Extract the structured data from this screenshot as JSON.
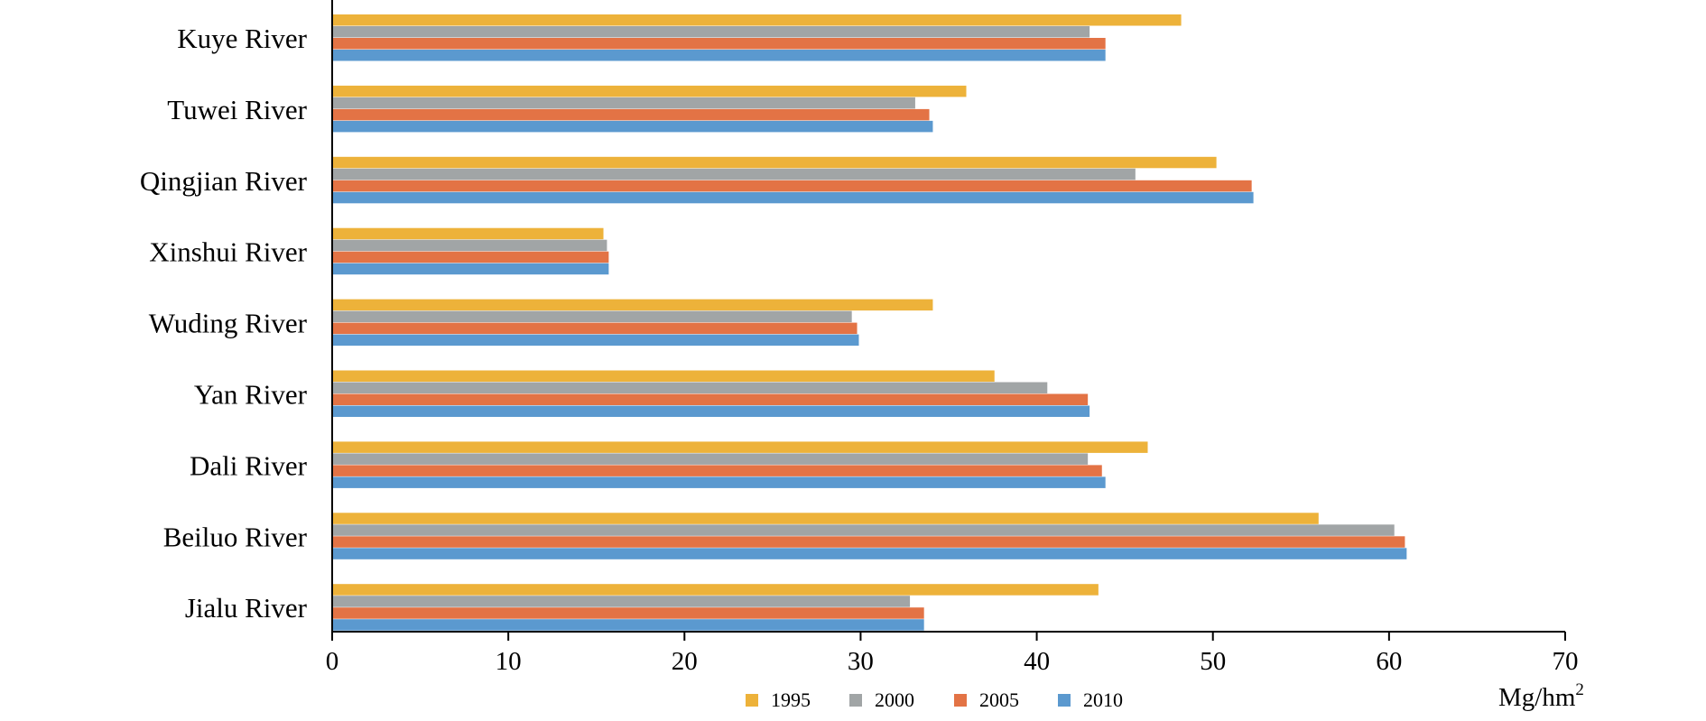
{
  "chart_data": {
    "type": "bar",
    "orientation": "horizontal",
    "categories": [
      "Kuye River",
      "Tuwei River",
      "Qingjian River",
      "Xinshui River",
      "Wuding River",
      "Yan River",
      "Dali River",
      "Beiluo River",
      "Jialu River"
    ],
    "series": [
      {
        "name": "1995",
        "color": "#EDB23A",
        "values": [
          48.2,
          36.0,
          50.2,
          15.4,
          34.1,
          37.6,
          46.3,
          56.0,
          43.5
        ]
      },
      {
        "name": "2000",
        "color": "#A1A5A6",
        "values": [
          43.0,
          33.1,
          45.6,
          15.6,
          29.5,
          40.6,
          42.9,
          60.3,
          32.8
        ]
      },
      {
        "name": "2005",
        "color": "#E37345",
        "values": [
          43.9,
          33.9,
          52.2,
          15.7,
          29.8,
          42.9,
          43.7,
          60.9,
          33.6
        ]
      },
      {
        "name": "2010",
        "color": "#5B99CF",
        "values": [
          43.9,
          34.1,
          52.3,
          15.7,
          29.9,
          43.0,
          43.9,
          61.0,
          33.6
        ]
      }
    ],
    "xlim": [
      0,
      70
    ],
    "xticks": [
      "0",
      "10",
      "20",
      "30",
      "40",
      "50",
      "60",
      "70"
    ],
    "unit_label": {
      "base": "Mg/hm",
      "superscript": "2"
    },
    "legend_position": "bottom",
    "grid": false
  }
}
